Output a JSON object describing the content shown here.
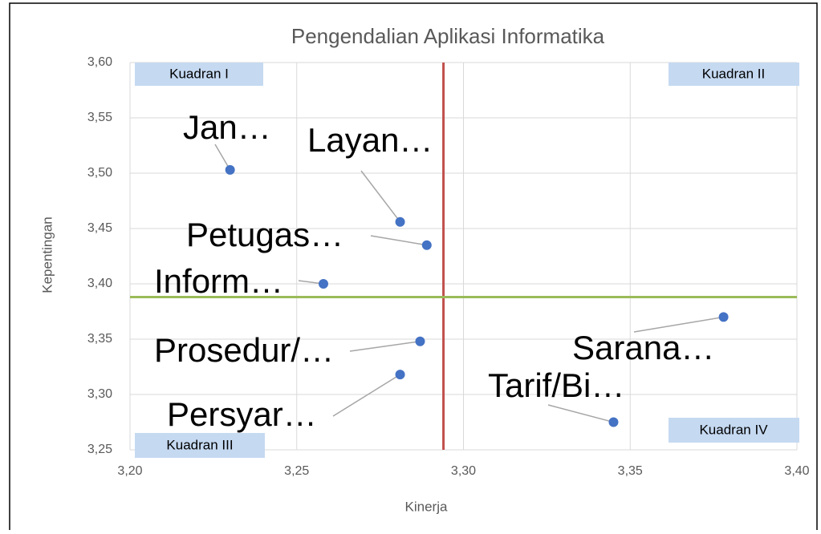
{
  "chart_data": {
    "type": "scatter",
    "title": "Pengendalian Aplikasi Informatika",
    "x_label": "Kinerja",
    "y_label": "Kepentingan",
    "x": [
      3.23,
      3.281,
      3.289,
      3.258,
      3.378,
      3.287,
      3.281,
      3.345
    ],
    "values": [
      3.503,
      3.456,
      3.435,
      3.4,
      3.37,
      3.348,
      3.318,
      3.275
    ],
    "point_labels": [
      "Jan…",
      "Layan…",
      "Petugas…",
      "Inform…",
      "Sarana…",
      "Prosedur/…",
      "Persyar…",
      "Tarif/Bi…"
    ],
    "color": "#4472c4",
    "xlim": [
      3.2,
      3.4
    ],
    "ylim": [
      3.25,
      3.6
    ],
    "xticks": [
      {
        "value": 3.2,
        "label": "3,20"
      },
      {
        "value": 3.25,
        "label": "3,25"
      },
      {
        "value": 3.3,
        "label": "3,30"
      },
      {
        "value": 3.35,
        "label": "3,35"
      },
      {
        "value": 3.4,
        "label": "3,40"
      }
    ],
    "yticks": [
      {
        "value": 3.25,
        "label": "3,25"
      },
      {
        "value": 3.3,
        "label": "3,30"
      },
      {
        "value": 3.35,
        "label": "3,35"
      },
      {
        "value": 3.4,
        "label": "3,40"
      },
      {
        "value": 3.45,
        "label": "3,45"
      },
      {
        "value": 3.5,
        "label": "3,50"
      },
      {
        "value": 3.55,
        "label": "3,55"
      },
      {
        "value": 3.6,
        "label": "3,60"
      }
    ],
    "grid": true,
    "reference_x": {
      "value": 3.294,
      "color": "#c0504d"
    },
    "reference_y": {
      "value": 3.388,
      "color": "#9bbb59"
    },
    "quadrant_labels": [
      "Kuadran I",
      "Kuadran II",
      "Kuadran III",
      "Kuadran IV"
    ]
  }
}
